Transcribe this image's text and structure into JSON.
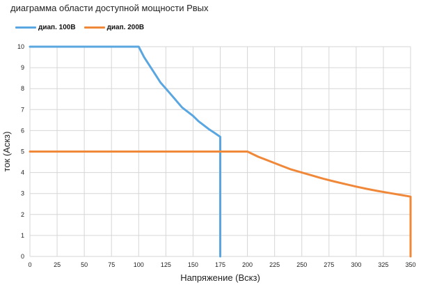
{
  "chart_data": {
    "type": "line",
    "title": "диаграмма области доступной мощности Рвых",
    "xlabel": "Напряжение (Вскз)",
    "ylabel": "ток (Аскз)",
    "xlim": [
      0,
      350
    ],
    "ylim": [
      0,
      10
    ],
    "x_ticks": [
      "0",
      "25",
      "50",
      "75",
      "100",
      "125",
      "150",
      "175",
      "200",
      "225",
      "250",
      "275",
      "300",
      "325",
      "350"
    ],
    "y_ticks": [
      "0",
      "1",
      "2",
      "3",
      "4",
      "5",
      "6",
      "7",
      "8",
      "9",
      "10"
    ],
    "grid": true,
    "legend_position": "top-left",
    "series": [
      {
        "name": "диап. 100В",
        "color": "#5aa6e0",
        "points": [
          [
            0,
            10
          ],
          [
            100,
            10
          ],
          [
            105,
            9.5
          ],
          [
            110,
            9.1
          ],
          [
            115,
            8.7
          ],
          [
            120,
            8.3
          ],
          [
            125,
            8.0
          ],
          [
            130,
            7.7
          ],
          [
            135,
            7.4
          ],
          [
            140,
            7.1
          ],
          [
            145,
            6.9
          ],
          [
            150,
            6.7
          ],
          [
            155,
            6.45
          ],
          [
            160,
            6.25
          ],
          [
            165,
            6.05
          ],
          [
            170,
            5.88
          ],
          [
            175,
            5.7
          ],
          [
            175,
            0
          ]
        ]
      },
      {
        "name": "диап. 200В",
        "color": "#f0883a",
        "points": [
          [
            0,
            5
          ],
          [
            200,
            5
          ],
          [
            210,
            4.75
          ],
          [
            220,
            4.55
          ],
          [
            230,
            4.35
          ],
          [
            240,
            4.15
          ],
          [
            250,
            4.0
          ],
          [
            260,
            3.85
          ],
          [
            270,
            3.7
          ],
          [
            280,
            3.57
          ],
          [
            290,
            3.45
          ],
          [
            300,
            3.33
          ],
          [
            310,
            3.22
          ],
          [
            320,
            3.12
          ],
          [
            330,
            3.03
          ],
          [
            340,
            2.94
          ],
          [
            350,
            2.85
          ],
          [
            350,
            0
          ]
        ]
      }
    ]
  }
}
